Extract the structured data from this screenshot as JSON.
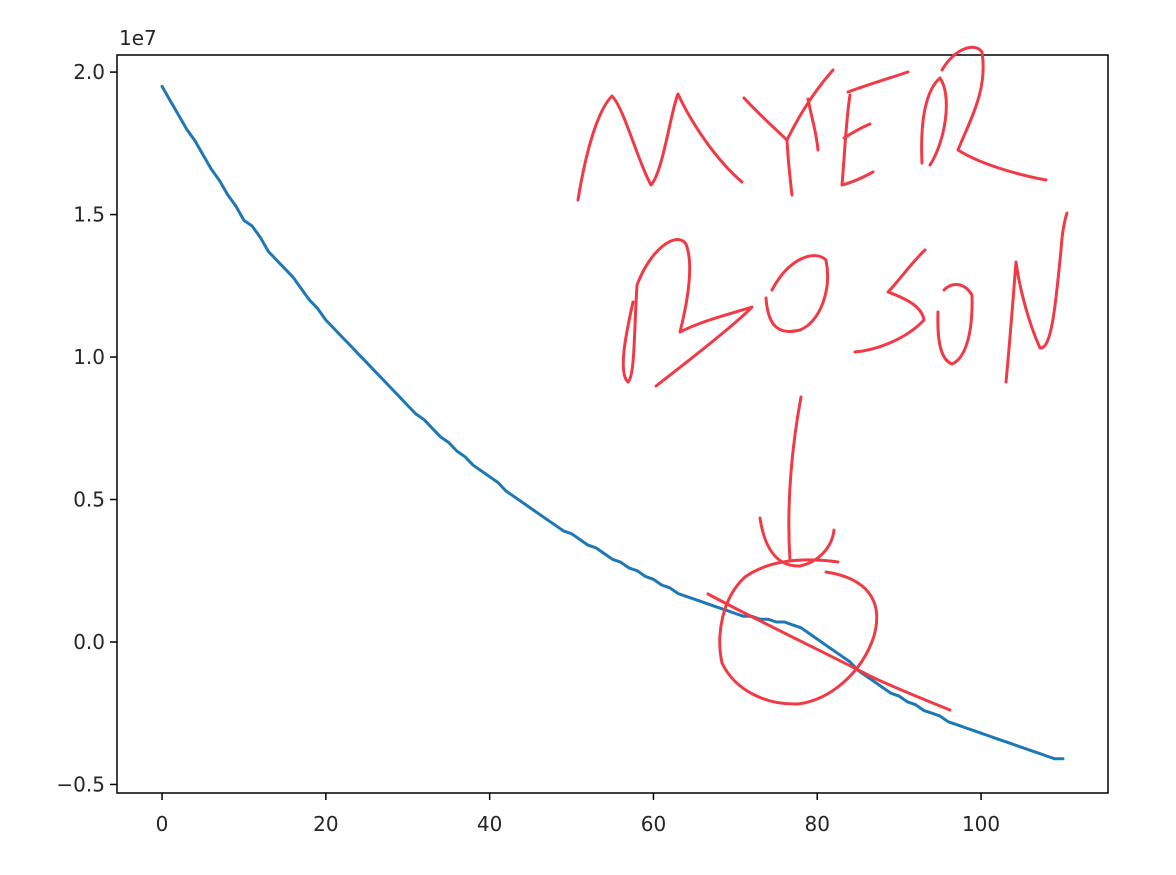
{
  "chart_data": {
    "type": "line",
    "title": "",
    "xlabel": "",
    "ylabel": "",
    "xlim": [
      -5.5,
      115.5
    ],
    "ylim": [
      -0.53,
      2.06
    ],
    "y_offset_label": "1e7",
    "x_ticks": [
      0,
      20,
      40,
      60,
      80,
      100
    ],
    "x_tick_labels": [
      "0",
      "20",
      "40",
      "60",
      "80",
      "100"
    ],
    "y_ticks": [
      2.0,
      1.5,
      1.0,
      0.5,
      0.0,
      -0.5
    ],
    "y_tick_labels": [
      "2.0",
      "1.5",
      "1.0",
      "0.5",
      "0.0",
      "−0.5"
    ],
    "grid": false,
    "legend": "none",
    "series": [
      {
        "color": "#1f77b4",
        "x": [
          0,
          1,
          2,
          3,
          4,
          5,
          6,
          7,
          8,
          9,
          10,
          11,
          12,
          13,
          14,
          15,
          16,
          17,
          18,
          19,
          20,
          21,
          22,
          23,
          24,
          25,
          26,
          27,
          28,
          29,
          30,
          31,
          32,
          33,
          34,
          35,
          36,
          37,
          38,
          39,
          40,
          41,
          42,
          43,
          44,
          45,
          46,
          47,
          48,
          49,
          50,
          51,
          52,
          53,
          54,
          55,
          56,
          57,
          58,
          59,
          60,
          61,
          62,
          63,
          64,
          65,
          66,
          67,
          68,
          69,
          70,
          71,
          72,
          73,
          74,
          75,
          76,
          77,
          78,
          79,
          80,
          81,
          82,
          83,
          84,
          85,
          86,
          87,
          88,
          89,
          90,
          91,
          92,
          93,
          94,
          95,
          96,
          97,
          98,
          99,
          100,
          101,
          102,
          103,
          104,
          105,
          106,
          107,
          108,
          109,
          110
        ],
        "y": [
          1.95,
          1.9,
          1.85,
          1.8,
          1.76,
          1.71,
          1.66,
          1.62,
          1.57,
          1.53,
          1.48,
          1.46,
          1.42,
          1.37,
          1.34,
          1.31,
          1.28,
          1.24,
          1.2,
          1.17,
          1.13,
          1.1,
          1.07,
          1.04,
          1.01,
          0.98,
          0.95,
          0.92,
          0.89,
          0.86,
          0.83,
          0.8,
          0.78,
          0.75,
          0.72,
          0.7,
          0.67,
          0.65,
          0.62,
          0.6,
          0.58,
          0.56,
          0.53,
          0.51,
          0.49,
          0.47,
          0.45,
          0.43,
          0.41,
          0.39,
          0.38,
          0.36,
          0.34,
          0.33,
          0.31,
          0.29,
          0.28,
          0.26,
          0.25,
          0.23,
          0.22,
          0.2,
          0.19,
          0.17,
          0.16,
          0.15,
          0.14,
          0.13,
          0.12,
          0.11,
          0.1,
          0.09,
          0.09,
          0.08,
          0.08,
          0.07,
          0.07,
          0.06,
          0.05,
          0.03,
          0.01,
          -0.01,
          -0.03,
          -0.05,
          -0.07,
          -0.1,
          -0.12,
          -0.14,
          -0.16,
          -0.18,
          -0.19,
          -0.21,
          -0.22,
          -0.24,
          -0.25,
          -0.26,
          -0.28,
          -0.29,
          -0.3,
          -0.31,
          -0.32,
          -0.33,
          -0.34,
          -0.35,
          -0.36,
          -0.37,
          -0.38,
          -0.39,
          -0.4,
          -0.41,
          -0.41
        ]
      }
    ],
    "annotations": [
      {
        "type": "handwritten",
        "text": "MYER",
        "color": "#f03a45"
      },
      {
        "type": "handwritten",
        "text": "BOSON",
        "color": "#f03a45"
      },
      {
        "type": "handwritten-arrow",
        "color": "#f03a45"
      },
      {
        "type": "handwritten-circle",
        "color": "#f03a45"
      },
      {
        "type": "handwritten-line",
        "color": "#f03a45"
      }
    ]
  }
}
